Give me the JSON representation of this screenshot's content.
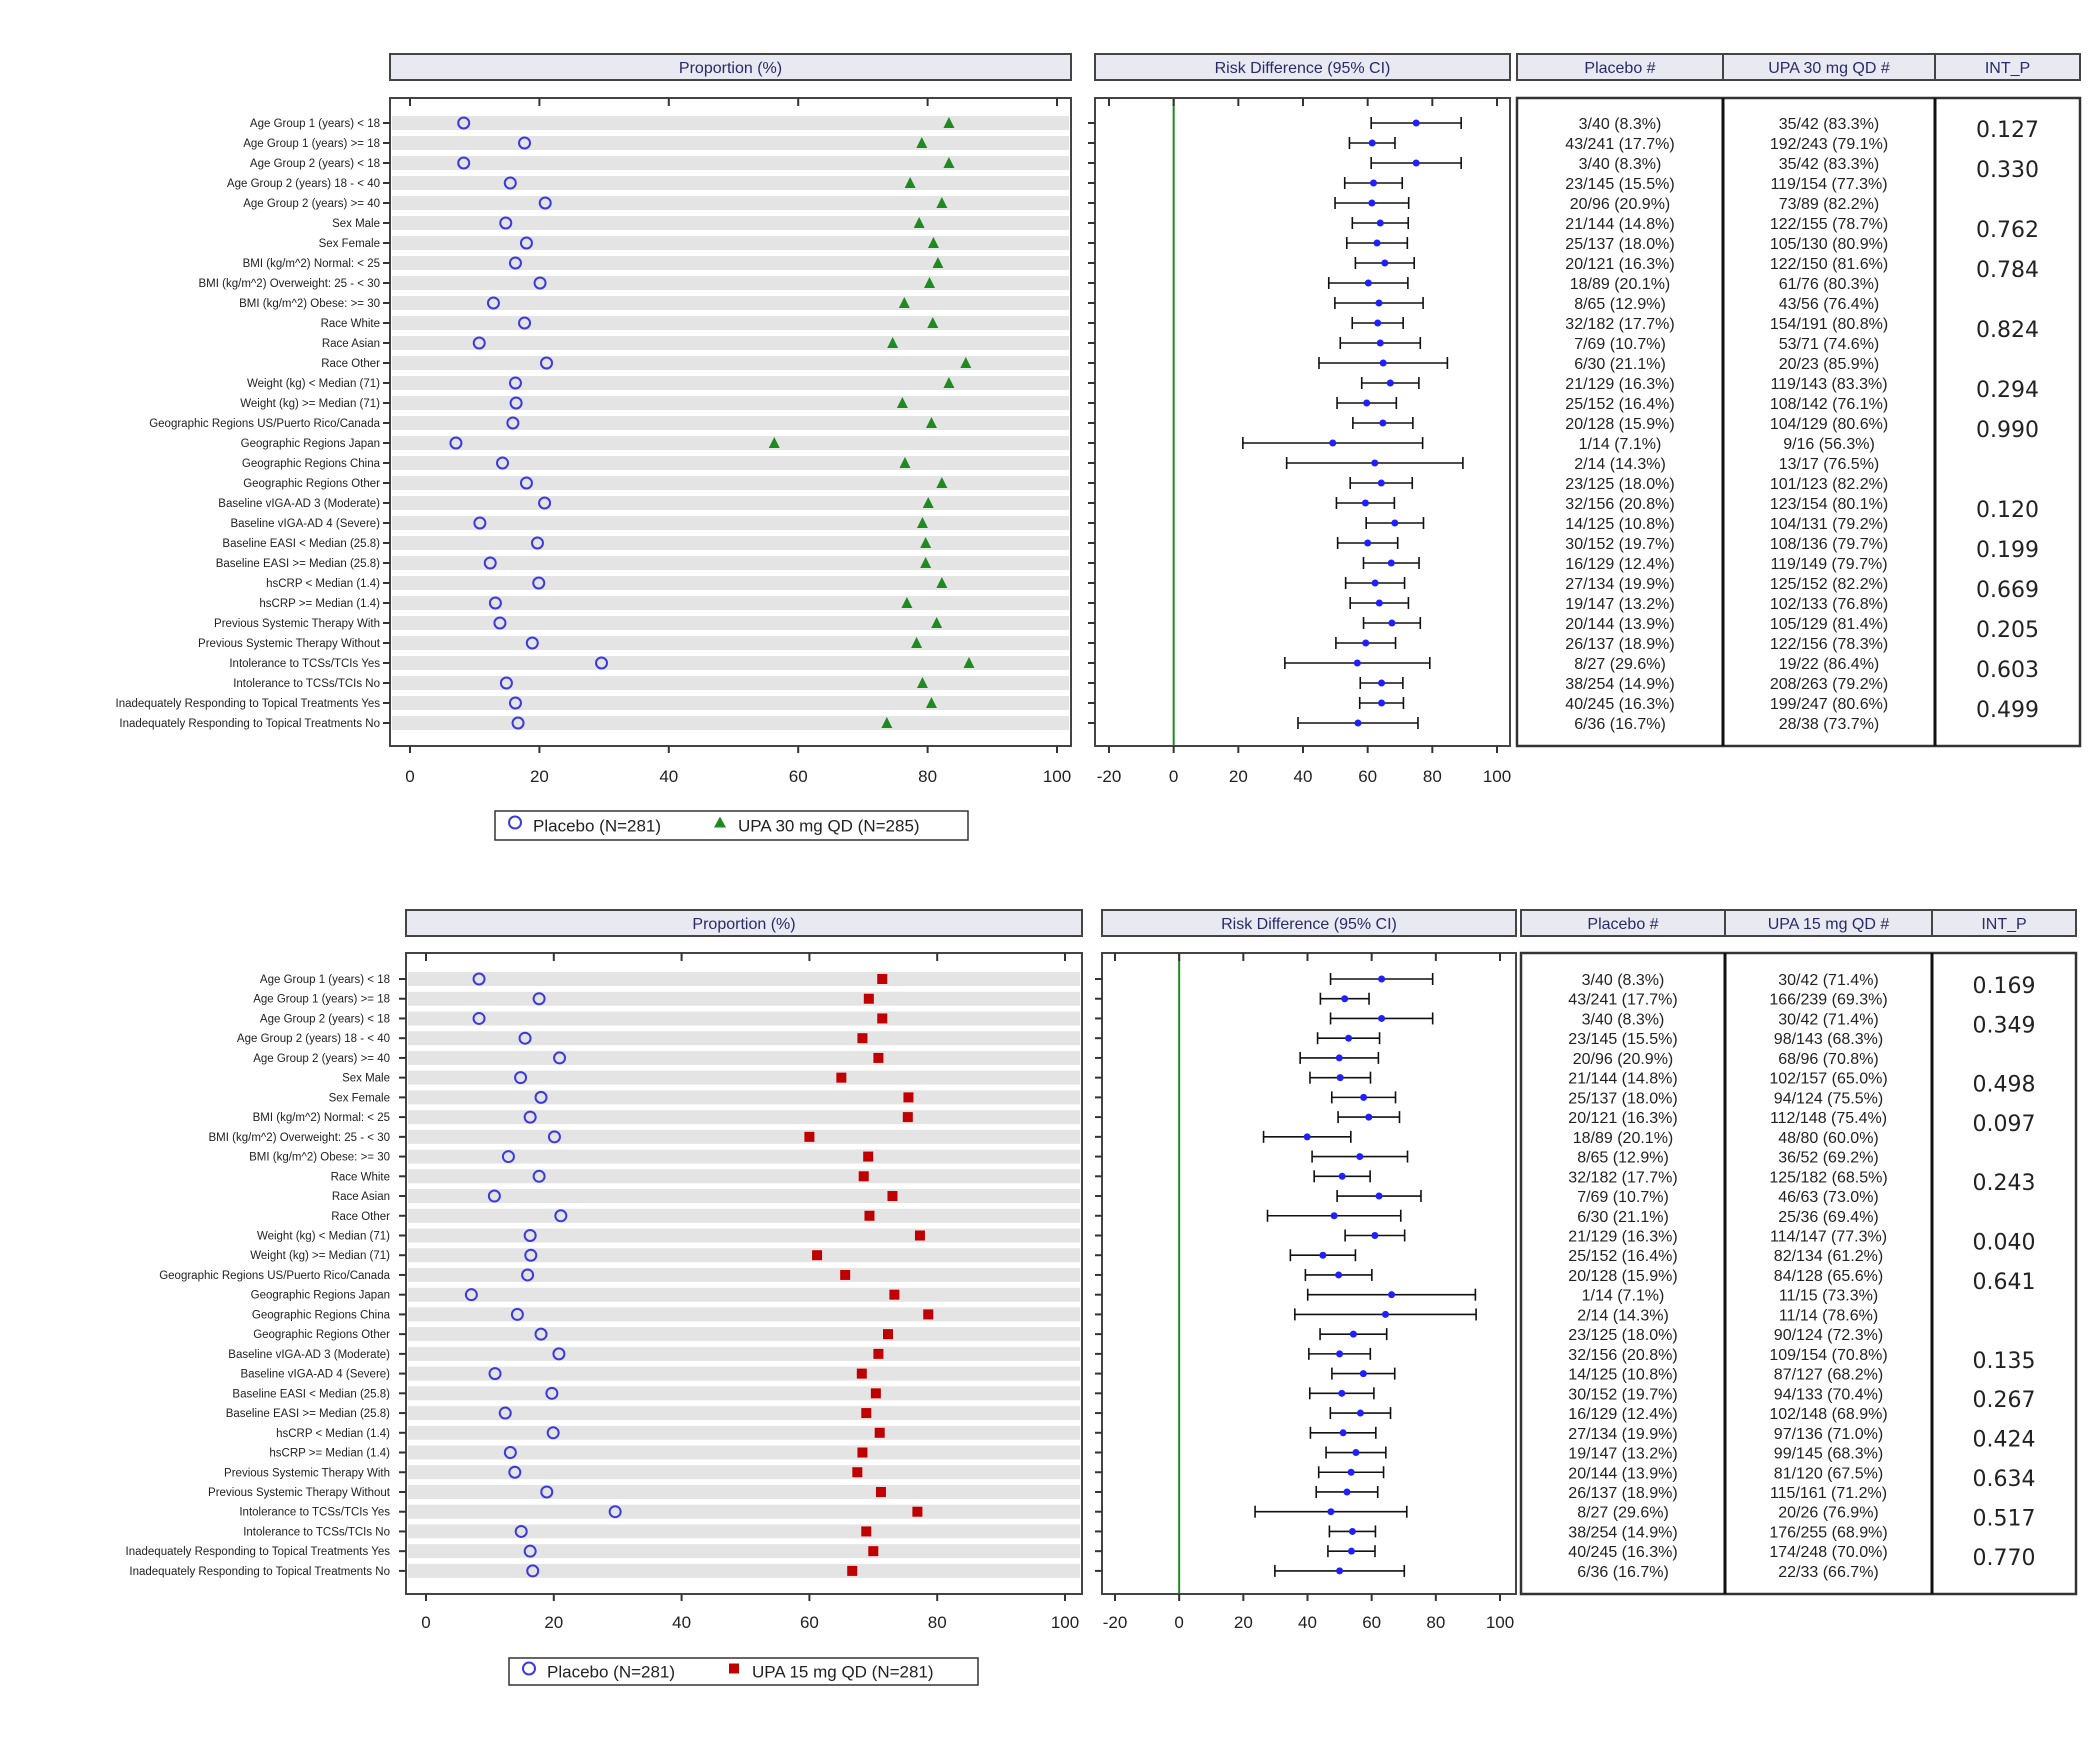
{
  "chart_data": [
    {
      "type": "forest",
      "headers": {
        "proportion": "Proportion (%)",
        "risk_difference": "Risk Difference (95% CI)",
        "placebo": "Placebo #",
        "active": "UPA 30 mg QD #",
        "int_p": "INT_P"
      },
      "legend": {
        "placebo": "Placebo (N=281)",
        "active": "UPA 30 mg QD (N=285)",
        "placement": "bottom"
      },
      "colors": {
        "placebo": "#3a3ae0",
        "active": "#1f8a1f",
        "rd_point": "#2020ff",
        "zero_line": "#1f8a1f"
      },
      "active_marker": "triangle",
      "proportion_axis": {
        "range": [
          0,
          100
        ],
        "ticks": [
          "0",
          "20",
          "40",
          "60",
          "80",
          "100"
        ]
      },
      "rd_axis": {
        "range": [
          -20,
          100
        ],
        "ticks": [
          "-20",
          "0",
          "20",
          "40",
          "60",
          "80",
          "100"
        ]
      },
      "subgroups": [
        "Age Group 1 (years) < 18",
        "Age Group 1 (years) >= 18",
        "Age Group 2 (years) < 18",
        "Age Group 2 (years) 18 - < 40",
        "Age Group 2 (years) >= 40",
        "Sex Male",
        "Sex Female",
        "BMI (kg/m^2) Normal: < 25",
        "BMI (kg/m^2) Overweight: 25 - < 30",
        "BMI (kg/m^2) Obese: >= 30",
        "Race White",
        "Race Asian",
        "Race Other",
        "Weight (kg) < Median (71)",
        "Weight (kg) >= Median (71)",
        "Geographic Regions US/Puerto Rico/Canada",
        "Geographic Regions Japan",
        "Geographic Regions China",
        "Geographic Regions Other",
        "Baseline vIGA-AD 3 (Moderate)",
        "Baseline vIGA-AD 4 (Severe)",
        "Baseline EASI < Median (25.8)",
        "Baseline EASI >= Median (25.8)",
        "hsCRP < Median (1.4)",
        "hsCRP >= Median (1.4)",
        "Previous Systemic Therapy With",
        "Previous Systemic Therapy Without",
        "Intolerance to TCSs/TCIs Yes",
        "Intolerance to TCSs/TCIs No",
        "Inadequately Responding to Topical Treatments Yes",
        "Inadequately Responding to Topical Treatments No"
      ],
      "placebo": [
        "3/40 (8.3%)",
        "43/241 (17.7%)",
        "3/40 (8.3%)",
        "23/145 (15.5%)",
        "20/96 (20.9%)",
        "21/144 (14.8%)",
        "25/137 (18.0%)",
        "20/121 (16.3%)",
        "18/89 (20.1%)",
        "8/65 (12.9%)",
        "32/182 (17.7%)",
        "7/69 (10.7%)",
        "6/30 (21.1%)",
        "21/129 (16.3%)",
        "25/152 (16.4%)",
        "20/128 (15.9%)",
        "1/14 (7.1%)",
        "2/14 (14.3%)",
        "23/125 (18.0%)",
        "32/156 (20.8%)",
        "14/125 (10.8%)",
        "30/152 (19.7%)",
        "16/129 (12.4%)",
        "27/134 (19.9%)",
        "19/147 (13.2%)",
        "20/144 (13.9%)",
        "26/137 (18.9%)",
        "8/27 (29.6%)",
        "38/254 (14.9%)",
        "40/245 (16.3%)",
        "6/36 (16.7%)"
      ],
      "active": [
        "35/42 (83.3%)",
        "192/243 (79.1%)",
        "35/42 (83.3%)",
        "119/154 (77.3%)",
        "73/89 (82.2%)",
        "122/155 (78.7%)",
        "105/130 (80.9%)",
        "122/150 (81.6%)",
        "61/76 (80.3%)",
        "43/56 (76.4%)",
        "154/191 (80.8%)",
        "53/71 (74.6%)",
        "20/23 (85.9%)",
        "119/143 (83.3%)",
        "108/142 (76.1%)",
        "104/129 (80.6%)",
        "9/16 (56.3%)",
        "13/17 (76.5%)",
        "101/123 (82.2%)",
        "123/154 (80.1%)",
        "104/131 (79.2%)",
        "108/136 (79.7%)",
        "119/149 (79.7%)",
        "125/152 (82.2%)",
        "102/133 (76.8%)",
        "105/129 (81.4%)",
        "122/156 (78.3%)",
        "19/22 (86.4%)",
        "208/263 (79.2%)",
        "199/247 (80.6%)",
        "28/38 (73.7%)"
      ],
      "int_p": [
        {
          "row": 0,
          "value": "0.127"
        },
        {
          "row": 2,
          "value": "0.330"
        },
        {
          "row": 5,
          "value": "0.762"
        },
        {
          "row": 7,
          "value": "0.784"
        },
        {
          "row": 10,
          "value": "0.824"
        },
        {
          "row": 13,
          "value": "0.294"
        },
        {
          "row": 15,
          "value": "0.990"
        },
        {
          "row": 19,
          "value": "0.120"
        },
        {
          "row": 21,
          "value": "0.199"
        },
        {
          "row": 23,
          "value": "0.669"
        },
        {
          "row": 25,
          "value": "0.205"
        },
        {
          "row": 27,
          "value": "0.603"
        },
        {
          "row": 29,
          "value": "0.499"
        }
      ]
    },
    {
      "type": "forest",
      "headers": {
        "proportion": "Proportion (%)",
        "risk_difference": "Risk Difference (95% CI)",
        "placebo": "Placebo #",
        "active": "UPA 15 mg QD #",
        "int_p": "INT_P"
      },
      "legend": {
        "placebo": "Placebo (N=281)",
        "active": "UPA 15 mg QD (N=281)",
        "placement": "bottom"
      },
      "colors": {
        "placebo": "#3a3ae0",
        "active": "#c00000",
        "rd_point": "#2020ff",
        "zero_line": "#1f8a1f"
      },
      "active_marker": "square",
      "proportion_axis": {
        "range": [
          0,
          100
        ],
        "ticks": [
          "0",
          "20",
          "40",
          "60",
          "80",
          "100"
        ]
      },
      "rd_axis": {
        "range": [
          -20,
          100
        ],
        "ticks": [
          "-20",
          "0",
          "20",
          "40",
          "60",
          "80",
          "100"
        ]
      },
      "subgroups": [
        "Age Group 1 (years) < 18",
        "Age Group 1 (years) >= 18",
        "Age Group 2 (years) < 18",
        "Age Group 2 (years) 18 - < 40",
        "Age Group 2 (years) >= 40",
        "Sex Male",
        "Sex Female",
        "BMI (kg/m^2) Normal: < 25",
        "BMI (kg/m^2) Overweight: 25 - < 30",
        "BMI (kg/m^2) Obese: >= 30",
        "Race White",
        "Race Asian",
        "Race Other",
        "Weight (kg) < Median (71)",
        "Weight (kg) >= Median (71)",
        "Geographic Regions US/Puerto Rico/Canada",
        "Geographic Regions Japan",
        "Geographic Regions China",
        "Geographic Regions Other",
        "Baseline vIGA-AD 3 (Moderate)",
        "Baseline vIGA-AD 4 (Severe)",
        "Baseline EASI < Median (25.8)",
        "Baseline EASI >= Median (25.8)",
        "hsCRP < Median (1.4)",
        "hsCRP >= Median (1.4)",
        "Previous Systemic Therapy With",
        "Previous Systemic Therapy Without",
        "Intolerance to TCSs/TCIs Yes",
        "Intolerance to TCSs/TCIs No",
        "Inadequately Responding to Topical Treatments Yes",
        "Inadequately Responding to Topical Treatments No"
      ],
      "placebo": [
        "3/40 (8.3%)",
        "43/241 (17.7%)",
        "3/40 (8.3%)",
        "23/145 (15.5%)",
        "20/96 (20.9%)",
        "21/144 (14.8%)",
        "25/137 (18.0%)",
        "20/121 (16.3%)",
        "18/89 (20.1%)",
        "8/65 (12.9%)",
        "32/182 (17.7%)",
        "7/69 (10.7%)",
        "6/30 (21.1%)",
        "21/129 (16.3%)",
        "25/152 (16.4%)",
        "20/128 (15.9%)",
        "1/14 (7.1%)",
        "2/14 (14.3%)",
        "23/125 (18.0%)",
        "32/156 (20.8%)",
        "14/125 (10.8%)",
        "30/152 (19.7%)",
        "16/129 (12.4%)",
        "27/134 (19.9%)",
        "19/147 (13.2%)",
        "20/144 (13.9%)",
        "26/137 (18.9%)",
        "8/27 (29.6%)",
        "38/254 (14.9%)",
        "40/245 (16.3%)",
        "6/36 (16.7%)"
      ],
      "active": [
        "30/42 (71.4%)",
        "166/239 (69.3%)",
        "30/42 (71.4%)",
        "98/143 (68.3%)",
        "68/96 (70.8%)",
        "102/157 (65.0%)",
        "94/124 (75.5%)",
        "112/148 (75.4%)",
        "48/80 (60.0%)",
        "36/52 (69.2%)",
        "125/182 (68.5%)",
        "46/63 (73.0%)",
        "25/36 (69.4%)",
        "114/147 (77.3%)",
        "82/134 (61.2%)",
        "84/128 (65.6%)",
        "11/15 (73.3%)",
        "11/14 (78.6%)",
        "90/124 (72.3%)",
        "109/154 (70.8%)",
        "87/127 (68.2%)",
        "94/133 (70.4%)",
        "102/148 (68.9%)",
        "97/136 (71.0%)",
        "99/145 (68.3%)",
        "81/120 (67.5%)",
        "115/161 (71.2%)",
        "20/26 (76.9%)",
        "176/255 (68.9%)",
        "174/248 (70.0%)",
        "22/33 (66.7%)"
      ],
      "int_p": [
        {
          "row": 0,
          "value": "0.169"
        },
        {
          "row": 2,
          "value": "0.349"
        },
        {
          "row": 5,
          "value": "0.498"
        },
        {
          "row": 7,
          "value": "0.097"
        },
        {
          "row": 10,
          "value": "0.243"
        },
        {
          "row": 13,
          "value": "0.040"
        },
        {
          "row": 15,
          "value": "0.641"
        },
        {
          "row": 19,
          "value": "0.135"
        },
        {
          "row": 21,
          "value": "0.267"
        },
        {
          "row": 23,
          "value": "0.424"
        },
        {
          "row": 25,
          "value": "0.634"
        },
        {
          "row": 27,
          "value": "0.517"
        },
        {
          "row": 29,
          "value": "0.770"
        }
      ]
    }
  ]
}
